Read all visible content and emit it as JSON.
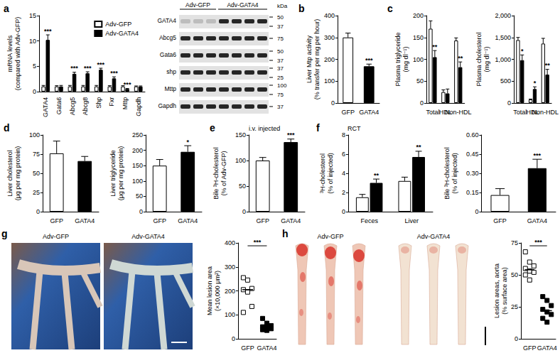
{
  "chart_data": [
    {
      "type": "bar",
      "panel": "a",
      "y_label": "mRNA levels\n(compared with Adv-GFP)",
      "categories": [
        "GATA4",
        "Gata6",
        "Abcg5",
        "Abcg8",
        "Shp",
        "Fxr",
        "Mttp",
        "Gapdh"
      ],
      "ylim": [
        0,
        15
      ],
      "yticks": [
        0,
        5,
        10,
        15
      ],
      "legend": "top-right",
      "series": [
        {
          "name": "Adv-GFP",
          "color": "#ffffff",
          "values": [
            1,
            1,
            1,
            1,
            1,
            1,
            1,
            1
          ],
          "errors": [
            0.2,
            0.15,
            0.2,
            0.2,
            0.2,
            0.15,
            0.15,
            0.1
          ]
        },
        {
          "name": "Adv-GATA4",
          "color": "#000000",
          "values": [
            10.2,
            1.0,
            3.5,
            3.6,
            4.3,
            2.6,
            0.5,
            1.0
          ],
          "errors": [
            1.0,
            0.2,
            0.3,
            0.3,
            0.3,
            0.3,
            0.1,
            0.1
          ],
          "sig": [
            "***",
            null,
            "***",
            "***",
            "***",
            "***",
            "***",
            null
          ]
        }
      ]
    },
    {
      "type": "bar",
      "panel": "b",
      "y_label": "Liver Mtp activity\n(% transfer per mg per hour)",
      "categories": [
        "GFP",
        "GATA4"
      ],
      "colors": [
        "#ffffff",
        "#000000"
      ],
      "values": [
        300,
        168
      ],
      "errors": [
        20,
        10
      ],
      "sig": [
        null,
        "***"
      ],
      "ylim": [
        0,
        400
      ],
      "yticks": [
        0,
        100,
        200,
        300,
        400
      ]
    },
    {
      "type": "bar",
      "panel": "c",
      "y_label": "Plasma triglyceride\n(mg dl⁻¹)",
      "categories": [
        "Total",
        "HDL",
        "Non-HDL"
      ],
      "series": [
        {
          "color": "#ffffff",
          "values": [
            170,
            25,
            143
          ],
          "errors": [
            18,
            5,
            6
          ]
        },
        {
          "color": "#000000",
          "values": [
            105,
            22,
            82
          ],
          "errors": [
            15,
            10,
            12
          ],
          "sig": [
            "**",
            null,
            "**"
          ]
        }
      ],
      "ylim": [
        0,
        200
      ],
      "yticks": [
        0,
        50,
        100,
        150,
        200
      ]
    },
    {
      "type": "bar",
      "y_label": "Plasma cholesterol\n(mg dl⁻¹)",
      "categories": [
        "Total",
        "HDL",
        "Non-HDL"
      ],
      "series": [
        {
          "color": "#ffffff",
          "values": [
            1440,
            80,
            1360
          ],
          "errors": [
            60,
            10,
            120
          ]
        },
        {
          "color": "#000000",
          "values": [
            980,
            320,
            650
          ],
          "errors": [
            120,
            50,
            120
          ],
          "sig": [
            "*",
            "*",
            "**"
          ]
        }
      ],
      "ylim": [
        0,
        2000
      ],
      "yticks": [
        0,
        500,
        {
          "value": 1000,
          "label": "1,000"
        },
        {
          "value": 1500,
          "label": "1,500"
        },
        {
          "value": 2000,
          "label": "2,000"
        }
      ]
    },
    {
      "type": "bar",
      "panel": "d",
      "y_label": "Liver cholesterol\n(μg per mg protein)",
      "categories": [
        "GFP",
        "GATA4"
      ],
      "colors": [
        "#ffffff",
        "#000000"
      ],
      "values": [
        76,
        66
      ],
      "errors": [
        16,
        6
      ],
      "ylim": [
        0,
        100
      ],
      "yticks": [
        0,
        25,
        50,
        75,
        100
      ]
    },
    {
      "type": "bar",
      "y_label": "Liver triglyceride\n(μg per mg protein)",
      "categories": [
        "GFP",
        "GATA4"
      ],
      "colors": [
        "#ffffff",
        "#000000"
      ],
      "values": [
        150,
        195
      ],
      "errors": [
        20,
        20
      ],
      "sig": [
        null,
        "*"
      ],
      "ylim": [
        0,
        250
      ],
      "yticks": [
        0,
        50,
        100,
        150,
        200,
        250
      ]
    },
    {
      "type": "bar",
      "panel": "e",
      "title": "i.v. injected",
      "y_label": "Bile ³H-cholesterol\n(% of Adv-GFP)",
      "categories": [
        "GFP",
        "GATA4"
      ],
      "colors": [
        "#ffffff",
        "#000000"
      ],
      "values": [
        100,
        136
      ],
      "errors": [
        6,
        6
      ],
      "sig": [
        null,
        "***"
      ],
      "ylim": [
        0,
        150
      ],
      "yticks": [
        0,
        50,
        100,
        150
      ]
    },
    {
      "type": "bar",
      "panel": "f",
      "title": "RCT",
      "y_label": "³H-cholesterol\n(% of injected)",
      "categories": [
        "Feces",
        "Liver"
      ],
      "series": [
        {
          "color": "#ffffff",
          "values": [
            1.5,
            3.2
          ],
          "errors": [
            0.3,
            0.4
          ]
        },
        {
          "color": "#000000",
          "values": [
            3.0,
            5.7
          ],
          "errors": [
            0.4,
            0.6
          ],
          "sig": [
            "**",
            "**"
          ]
        }
      ],
      "ylim": [
        0,
        8
      ],
      "yticks": [
        0,
        2,
        4,
        6,
        8
      ]
    },
    {
      "type": "bar",
      "y_label": "Bile ³H-cholesterol\n(% of injected)",
      "categories": [
        "GFP",
        "GATA4"
      ],
      "colors": [
        "#ffffff",
        "#000000"
      ],
      "values": [
        0.13,
        0.34
      ],
      "errors": [
        0.05,
        0.07
      ],
      "sig": [
        null,
        "***"
      ],
      "ylim": [
        0,
        0.6
      ],
      "yticks": [
        0,
        0.15,
        {
          "value": 0.3,
          "label": "0.30"
        },
        0.45,
        {
          "value": 0.6,
          "label": "0.60"
        }
      ]
    },
    {
      "type": "scatter",
      "y_label": "Mean lesion area\n(×10,000 μm²)",
      "categories": [
        "GFP",
        "GATA4"
      ],
      "marker": "square",
      "colors": [
        "#ffffff",
        "#000000"
      ],
      "values": [
        [
          255,
          245,
          210,
          205,
          195,
          135,
          110
        ],
        [
          85,
          65,
          55,
          50,
          48,
          42,
          38,
          35
        ]
      ],
      "means": [
        205,
        52
      ],
      "sig": "***",
      "ylim": [
        0,
        400
      ],
      "yticks": [
        0,
        100,
        200,
        300,
        400
      ]
    },
    {
      "type": "scatter",
      "y_label": "Lesion areas, aorta\n(% surface area)",
      "categories": [
        "GFP",
        "GATA4"
      ],
      "marker": "square",
      "colors": [
        "#ffffff",
        "#000000"
      ],
      "values": [
        [
          68,
          60,
          57,
          55,
          53,
          52,
          50,
          46
        ],
        [
          33,
          30,
          26,
          23,
          21,
          19,
          16,
          13
        ]
      ],
      "means": [
        54,
        22
      ],
      "sig": "***",
      "ylim": [
        0,
        75
      ],
      "yticks": [
        0,
        25,
        50,
        75
      ]
    }
  ],
  "blot": {
    "groups": [
      "Adv-GFP",
      "Adv-GATA4"
    ],
    "lanes": [
      3,
      4
    ],
    "unit": "kDa",
    "rows": [
      {
        "label": "GATA4",
        "markers": [
          50,
          37
        ]
      },
      {
        "label": "Abcg5",
        "markers": [
          75
        ]
      },
      {
        "label": "Gata6",
        "markers": [
          50,
          37
        ]
      },
      {
        "label": "shp",
        "markers": [
          37,
          25
        ]
      },
      {
        "label": "Mttp",
        "markers": [
          100,
          75
        ]
      },
      {
        "label": "Gapdh",
        "markers": [
          37
        ]
      }
    ]
  },
  "images": [
    {
      "panel": "g",
      "labels": [
        "Adv-GFP",
        "Adv-GATA4"
      ]
    },
    {
      "panel": "h",
      "labels": [
        "Adv-GFP",
        "Adv-GATA4"
      ]
    }
  ]
}
